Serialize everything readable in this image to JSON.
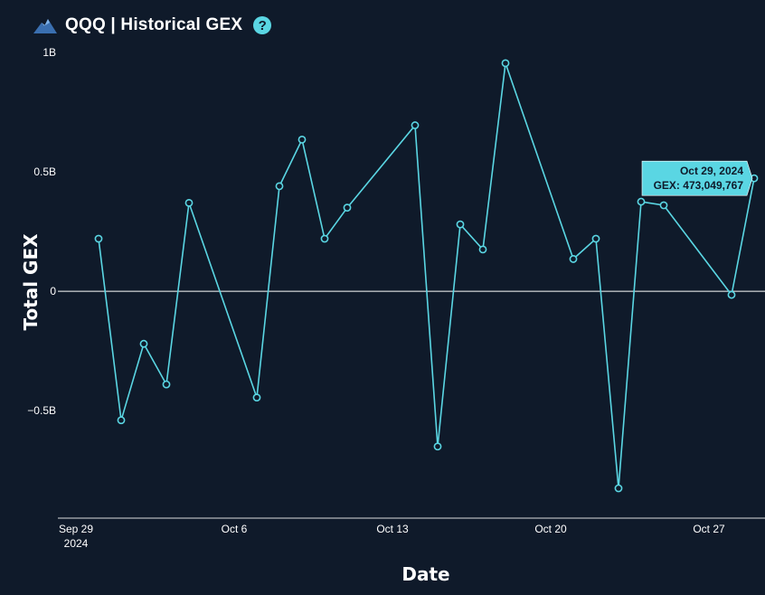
{
  "header": {
    "title": "QQQ | Historical GEX",
    "help_label": "?",
    "logo_icon": "mountain-logo-icon"
  },
  "chart_data": {
    "type": "line",
    "xlabel": "Date",
    "ylabel": "Total GEX",
    "ylim": [
      -950000000,
      1000000000
    ],
    "xlim": [
      "2024-09-29",
      "2024-10-29"
    ],
    "yticks": [
      {
        "value": 1000000000,
        "label": "1B"
      },
      {
        "value": 500000000,
        "label": "0.5B"
      },
      {
        "value": 0,
        "label": "0"
      },
      {
        "value": -500000000,
        "label": "−0.5B"
      }
    ],
    "xticks": [
      {
        "date": "2024-09-29",
        "label": "Sep 29",
        "sublabel": "2024"
      },
      {
        "date": "2024-10-06",
        "label": "Oct 6"
      },
      {
        "date": "2024-10-13",
        "label": "Oct 13"
      },
      {
        "date": "2024-10-20",
        "label": "Oct 20"
      },
      {
        "date": "2024-10-27",
        "label": "Oct 27"
      }
    ],
    "series": [
      {
        "color": "#5ad6e3",
        "points": [
          {
            "x": "2024-09-30",
            "y": 220000000
          },
          {
            "x": "2024-10-01",
            "y": -540000000
          },
          {
            "x": "2024-10-02",
            "y": -220000000
          },
          {
            "x": "2024-10-03",
            "y": -390000000
          },
          {
            "x": "2024-10-04",
            "y": 370000000
          },
          {
            "x": "2024-10-07",
            "y": -445000000
          },
          {
            "x": "2024-10-08",
            "y": 440000000
          },
          {
            "x": "2024-10-09",
            "y": 635000000
          },
          {
            "x": "2024-10-10",
            "y": 220000000
          },
          {
            "x": "2024-10-11",
            "y": 350000000
          },
          {
            "x": "2024-10-14",
            "y": 695000000
          },
          {
            "x": "2024-10-15",
            "y": -650000000
          },
          {
            "x": "2024-10-16",
            "y": 280000000
          },
          {
            "x": "2024-10-17",
            "y": 175000000
          },
          {
            "x": "2024-10-18",
            "y": 955000000
          },
          {
            "x": "2024-10-21",
            "y": 135000000
          },
          {
            "x": "2024-10-22",
            "y": 220000000
          },
          {
            "x": "2024-10-23",
            "y": -825000000
          },
          {
            "x": "2024-10-24",
            "y": 375000000
          },
          {
            "x": "2024-10-25",
            "y": 360000000
          },
          {
            "x": "2024-10-28",
            "y": -15000000
          },
          {
            "x": "2024-10-29",
            "y": 473049767
          }
        ]
      }
    ],
    "tooltip": {
      "date": "Oct 29, 2024",
      "text": "GEX: 473,049,767",
      "point_index": 21
    },
    "grid": false,
    "zero_line": true
  }
}
